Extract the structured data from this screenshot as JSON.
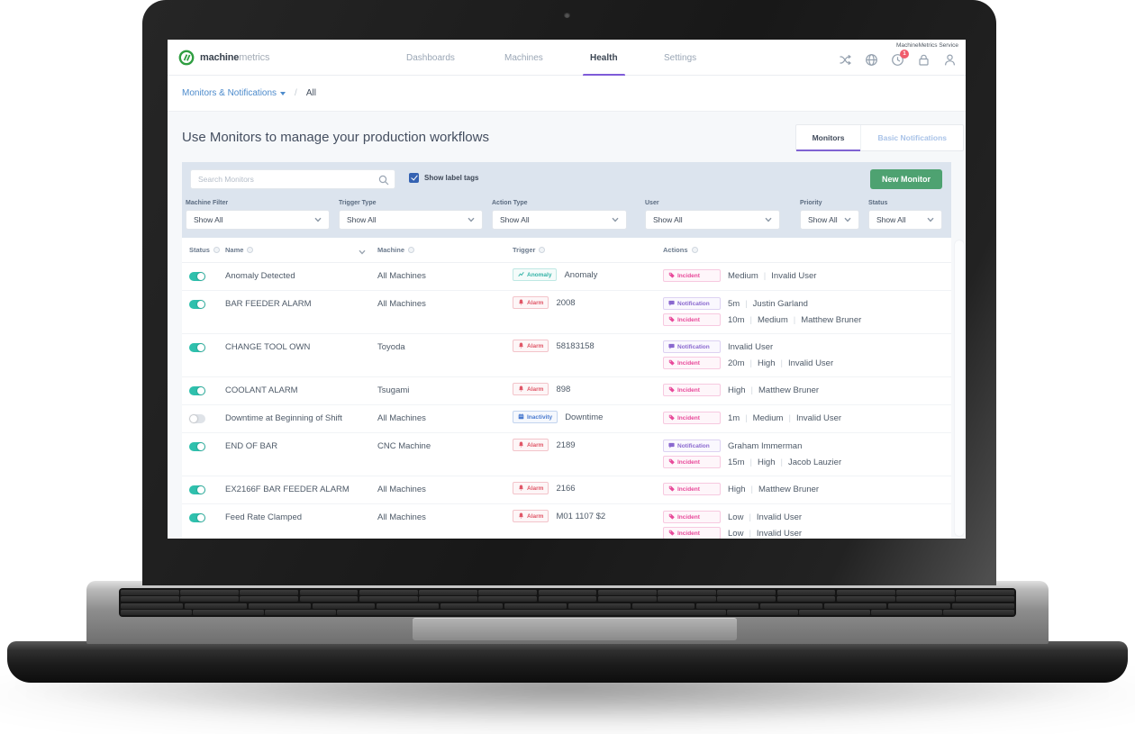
{
  "top_bar": {
    "service_label": "MachineMetrics Service",
    "brand": {
      "bold": "machine",
      "light": "metrics"
    },
    "nav_items": [
      {
        "label": "Dashboards",
        "active": false
      },
      {
        "label": "Machines",
        "active": false
      },
      {
        "label": "Health",
        "active": true
      },
      {
        "label": "Settings",
        "active": false
      }
    ],
    "notification_badge": "1"
  },
  "breadcrumb": {
    "menu": "Monitors & Notifications",
    "separator": "/",
    "current": "All"
  },
  "page": {
    "title": "Use Monitors to manage your production workflows",
    "view_tabs": [
      {
        "label": "Monitors",
        "active": true
      },
      {
        "label": "Basic Notifications",
        "active": false
      }
    ]
  },
  "toolbar": {
    "search_placeholder": "Search Monitors",
    "show_label_tags_label": "Show label tags",
    "show_label_tags_checked": true,
    "new_monitor_label": "New Monitor"
  },
  "filters": [
    {
      "label": "Machine Filter",
      "value": "Show All"
    },
    {
      "label": "Trigger Type",
      "value": "Show All"
    },
    {
      "label": "Action Type",
      "value": "Show All"
    },
    {
      "label": "User",
      "value": "Show All"
    },
    {
      "label": "Priority",
      "value": "Show All"
    },
    {
      "label": "Status",
      "value": "Show All"
    }
  ],
  "table": {
    "columns": [
      {
        "label": "Status"
      },
      {
        "label": "Name",
        "sortable": true
      },
      {
        "label": "Machine"
      },
      {
        "label": "Trigger"
      },
      {
        "label": "Actions"
      }
    ],
    "rows": [
      {
        "enabled": true,
        "name": "Anomaly Detected",
        "machine": "All Machines",
        "trigger": {
          "type": "Anomaly",
          "value": "Anomaly"
        },
        "actions": [
          {
            "type": "Incident",
            "parts": [
              "Medium",
              "Invalid User"
            ]
          }
        ]
      },
      {
        "enabled": true,
        "name": "BAR FEEDER ALARM",
        "machine": "All Machines",
        "trigger": {
          "type": "Alarm",
          "value": "2008"
        },
        "actions": [
          {
            "type": "Notification",
            "parts": [
              "5m",
              "Justin Garland"
            ]
          },
          {
            "type": "Incident",
            "parts": [
              "10m",
              "Medium",
              "Matthew Bruner"
            ]
          }
        ]
      },
      {
        "enabled": true,
        "name": "CHANGE TOOL OWN",
        "machine": "Toyoda",
        "trigger": {
          "type": "Alarm",
          "value": "58183158"
        },
        "actions": [
          {
            "type": "Notification",
            "parts": [
              "Invalid User"
            ]
          },
          {
            "type": "Incident",
            "parts": [
              "20m",
              "High",
              "Invalid User"
            ]
          }
        ]
      },
      {
        "enabled": true,
        "name": "COOLANT ALARM",
        "machine": "Tsugami",
        "trigger": {
          "type": "Alarm",
          "value": "898"
        },
        "actions": [
          {
            "type": "Incident",
            "parts": [
              "High",
              "Matthew Bruner"
            ]
          }
        ]
      },
      {
        "enabled": false,
        "name": "Downtime at Beginning of Shift",
        "machine": "All Machines",
        "trigger": {
          "type": "Inactivity",
          "value": "Downtime"
        },
        "actions": [
          {
            "type": "Incident",
            "parts": [
              "1m",
              "Medium",
              "Invalid User"
            ]
          }
        ]
      },
      {
        "enabled": true,
        "name": "END OF BAR",
        "machine": "CNC Machine",
        "trigger": {
          "type": "Alarm",
          "value": "2189"
        },
        "actions": [
          {
            "type": "Notification",
            "parts": [
              "Graham Immerman"
            ]
          },
          {
            "type": "Incident",
            "parts": [
              "15m",
              "High",
              "Jacob Lauzier"
            ]
          }
        ]
      },
      {
        "enabled": true,
        "name": "EX2166F BAR FEEDER ALARM",
        "machine": "All Machines",
        "trigger": {
          "type": "Alarm",
          "value": "2166"
        },
        "actions": [
          {
            "type": "Incident",
            "parts": [
              "High",
              "Matthew Bruner"
            ]
          }
        ]
      },
      {
        "enabled": true,
        "name": "Feed Rate Clamped",
        "machine": "All Machines",
        "trigger": {
          "type": "Alarm",
          "value": "M01 1107 $2"
        },
        "actions": [
          {
            "type": "Incident",
            "parts": [
              "Low",
              "Invalid User"
            ]
          },
          {
            "type": "Incident",
            "parts": [
              "Low",
              "Invalid User"
            ]
          }
        ]
      }
    ]
  },
  "colors": {
    "accent_purple": "#7e5bd8",
    "toggle_on_teal": "#2fc0ad",
    "new_monitor_green": "#4ea271",
    "incident_pink": "#e8499a",
    "notification_purple": "#8a68cf",
    "alarm_red": "#e05667",
    "anomaly_teal": "#35b3a7",
    "inactivity_blue": "#4a7bd0",
    "breadcrumb_blue": "#4d8bcc",
    "toolbar_bg": "#dce4ee"
  }
}
